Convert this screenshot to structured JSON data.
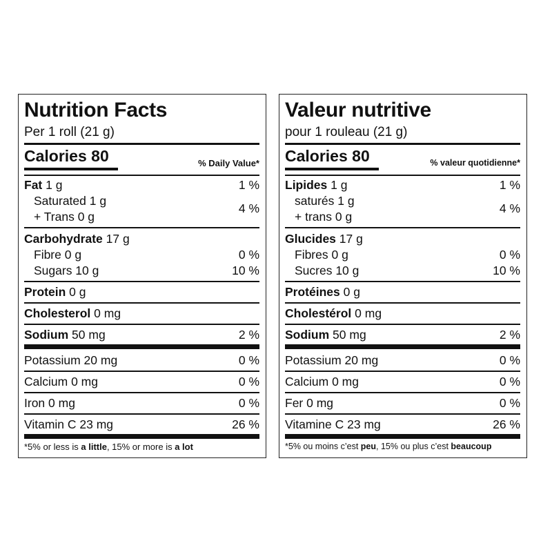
{
  "english": {
    "title": "Nutrition Facts",
    "serving": "Per 1 roll (21 g)",
    "calories": "Calories 80",
    "dv_header": "% Daily Value*",
    "fat": {
      "bold": "Fat",
      "amount": " 1 g",
      "pct": "1 %"
    },
    "saturated": "Saturated 1 g",
    "trans": "+ Trans 0 g",
    "sat_trans_pct": "4 %",
    "carbohydrate": {
      "bold": "Carbohydrate",
      "amount": " 17 g"
    },
    "fibre": {
      "label": "Fibre 0 g",
      "pct": "0 %"
    },
    "sugars": {
      "label": "Sugars 10 g",
      "pct": "10 %"
    },
    "protein": {
      "bold": "Protein",
      "amount": " 0 g"
    },
    "cholesterol": {
      "bold": "Cholesterol",
      "amount": " 0 mg"
    },
    "sodium": {
      "bold": "Sodium",
      "amount": " 50 mg",
      "pct": "2 %"
    },
    "potassium": {
      "label": "Potassium 20 mg",
      "pct": "0 %"
    },
    "calcium": {
      "label": "Calcium 0 mg",
      "pct": "0 %"
    },
    "iron": {
      "label": "Iron 0 mg",
      "pct": "0 %"
    },
    "vitamin_c": {
      "label": "Vitamin C 23 mg",
      "pct": "26 %"
    },
    "footnote": {
      "p1": "*5% or less is ",
      "b1": "a little",
      "p2": ", 15% or more is ",
      "b2": "a lot"
    }
  },
  "french": {
    "title": "Valeur nutritive",
    "serving": "pour 1 rouleau (21 g)",
    "calories": "Calories 80",
    "dv_header": "% valeur quotidienne*",
    "fat": {
      "bold": "Lipides",
      "amount": " 1 g",
      "pct": "1 %"
    },
    "saturated": "saturés 1 g",
    "trans": "+ trans 0 g",
    "sat_trans_pct": "4 %",
    "carbohydrate": {
      "bold": "Glucides",
      "amount": " 17 g"
    },
    "fibre": {
      "label": "Fibres 0 g",
      "pct": "0 %"
    },
    "sugars": {
      "label": "Sucres 10 g",
      "pct": "10 %"
    },
    "protein": {
      "bold": "Protéines",
      "amount": " 0 g"
    },
    "cholesterol": {
      "bold": "Cholestérol",
      "amount": " 0 mg"
    },
    "sodium": {
      "bold": "Sodium",
      "amount": " 50 mg",
      "pct": "2 %"
    },
    "potassium": {
      "label": "Potassium 20 mg",
      "pct": "0 %"
    },
    "calcium": {
      "label": "Calcium 0 mg",
      "pct": "0 %"
    },
    "iron": {
      "label": "Fer 0 mg",
      "pct": "0 %"
    },
    "vitamin_c": {
      "label": "Vitamine C 23 mg",
      "pct": "26 %"
    },
    "footnote": {
      "p1": "*5% ou moins c’est ",
      "b1": "peu",
      "p2": ", 15% ou plus c’est ",
      "b2": "beaucoup"
    }
  }
}
